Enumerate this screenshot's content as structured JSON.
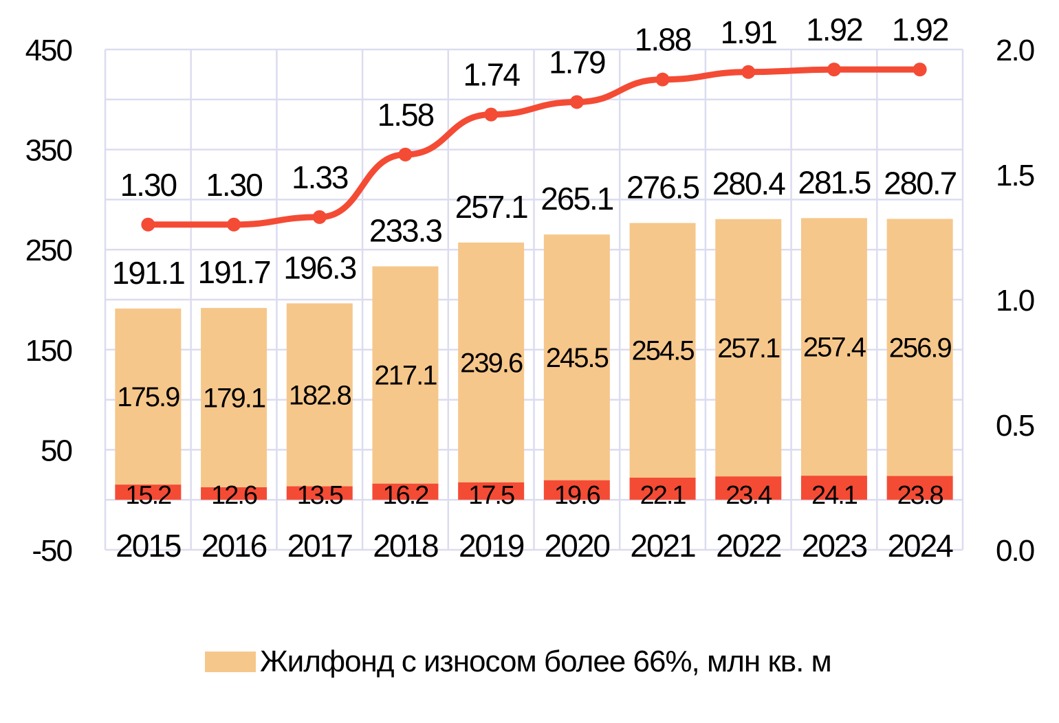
{
  "chart_data": {
    "type": "bar",
    "stacked": true,
    "categories": [
      "2015",
      "2016",
      "2017",
      "2018",
      "2019",
      "2020",
      "2021",
      "2022",
      "2023",
      "2024"
    ],
    "series": [
      {
        "values": [
          15.2,
          12.6,
          13.5,
          16.2,
          17.5,
          19.6,
          22.1,
          23.4,
          24.1,
          23.8
        ],
        "color": "#f44b35",
        "axis": "left",
        "kind": "bar"
      },
      {
        "name": "Жилфонд с износом более 66%, млн кв. м",
        "values": [
          175.9,
          179.1,
          182.8,
          217.1,
          239.6,
          245.5,
          254.5,
          257.1,
          257.4,
          256.9
        ],
        "color": "#f6c78b",
        "axis": "left",
        "kind": "bar"
      },
      {
        "values": [
          1.3,
          1.3,
          1.33,
          1.58,
          1.74,
          1.79,
          1.88,
          1.91,
          1.92,
          1.92
        ],
        "color": "#f44b35",
        "axis": "right",
        "kind": "line",
        "labels": [
          "1.30",
          "1.30",
          "1.33",
          "1.58",
          "1.74",
          "1.79",
          "1.88",
          "1.91",
          "1.92",
          "1.92"
        ]
      }
    ],
    "totals": [
      "191.1",
      "191.7",
      "196.3",
      "233.3",
      "257.1",
      "265.1",
      "276.5",
      "280.4",
      "281.5",
      "280.7"
    ],
    "y_left": {
      "range": [
        -50,
        450
      ],
      "ticks": [
        "-50",
        "50",
        "150",
        "250",
        "350",
        "450"
      ]
    },
    "y_right": {
      "range": [
        0,
        2.0
      ],
      "ticks": [
        "0.0",
        "0.5",
        "1.0",
        "1.5",
        "2.0"
      ]
    },
    "grid": true,
    "grid_color": "#dcdcf0",
    "legend": {
      "position": "bottom",
      "label": "Жилфонд с износом более 66%, млн кв. м"
    }
  }
}
